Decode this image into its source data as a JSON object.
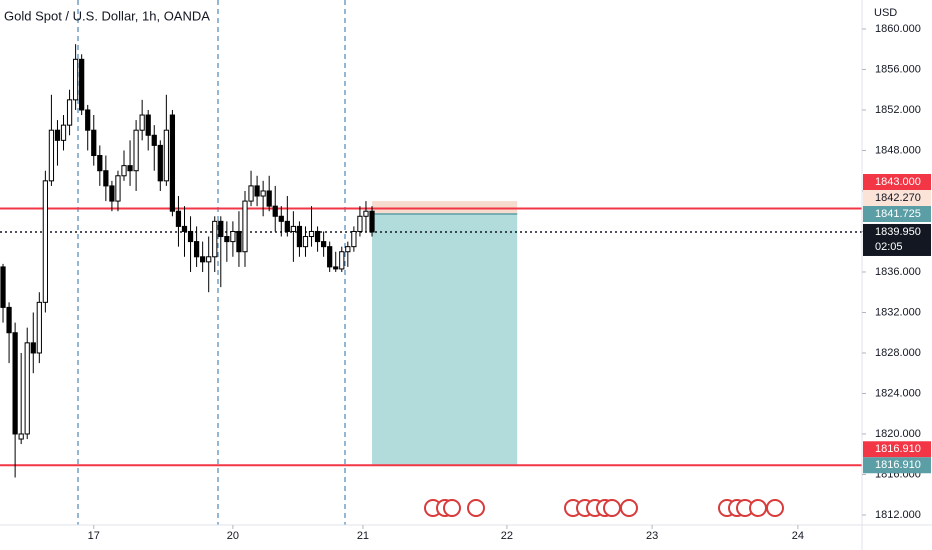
{
  "chart_data": {
    "type": "candlestick",
    "title": "Gold Spot / U.S. Dollar, 1h, OANDA",
    "currency": "USD",
    "up_color": "#ffffff",
    "down_color": "#000000",
    "open": [
      1836.5,
      1832.5,
      1830,
      1819.5,
      1820,
      1829,
      1828,
      1833,
      1845,
      1850,
      1849,
      1850.5,
      1853,
      1857,
      1852,
      1850,
      1847.5,
      1846,
      1844.5,
      1843,
      1845.5,
      1846.5,
      1846,
      1850,
      1851.5,
      1849.5,
      1848.5,
      1845,
      1851.5,
      1842,
      1840.5,
      1840,
      1839,
      1837.5,
      1837,
      1837.5,
      1841,
      1839.5,
      1839,
      1840,
      1838,
      1843,
      1844.5,
      1843.5,
      1844,
      1842.5,
      1841.5,
      1841,
      1840,
      1840.5,
      1838.5,
      1839.5,
      1840,
      1839,
      1838.5,
      1836.5,
      1836.3,
      1838,
      1838.5,
      1840,
      1841.5,
      1842
    ],
    "high": [
      1836.8,
      1833,
      1831,
      1828,
      1830.5,
      1832,
      1834,
      1846,
      1853.5,
      1851,
      1851.5,
      1854,
      1858.5,
      1857.5,
      1852.5,
      1851.5,
      1848.5,
      1847.5,
      1845,
      1846,
      1848,
      1849,
      1851,
      1853,
      1852,
      1850.5,
      1849,
      1853.5,
      1852,
      1843.5,
      1842.5,
      1841.5,
      1840.5,
      1839,
      1839.5,
      1841.5,
      1841.5,
      1841,
      1841,
      1842,
      1844,
      1846,
      1845.5,
      1845,
      1845.5,
      1844.5,
      1842.5,
      1843.5,
      1842,
      1841,
      1840.5,
      1842.5,
      1840.5,
      1840,
      1839,
      1838,
      1838.5,
      1839,
      1840.5,
      1842.5,
      1843,
      1842.5
    ],
    "low": [
      1831,
      1827,
      1815.7,
      1819,
      1819.5,
      1826,
      1827,
      1832,
      1844.5,
      1846.5,
      1848,
      1849.5,
      1852,
      1851.5,
      1848,
      1846.5,
      1844.5,
      1843,
      1842,
      1842,
      1845,
      1844.5,
      1844,
      1849,
      1848,
      1846,
      1844,
      1844.5,
      1841.5,
      1838.5,
      1837.5,
      1836,
      1836.5,
      1836,
      1834,
      1836,
      1834.5,
      1837,
      1837.5,
      1836.5,
      1836.5,
      1842.5,
      1842.5,
      1841.5,
      1842,
      1840,
      1839.5,
      1839.5,
      1837,
      1837.5,
      1837.5,
      1838.5,
      1838,
      1837.5,
      1836,
      1836,
      1836,
      1836.5,
      1838,
      1839.5,
      1840,
      1839.5
    ],
    "close": [
      1832.5,
      1830,
      1820,
      1820,
      1829,
      1828,
      1833,
      1845,
      1850,
      1849,
      1850.5,
      1853,
      1857,
      1852,
      1850,
      1847.5,
      1846,
      1844.5,
      1843,
      1845.5,
      1846.5,
      1846,
      1850,
      1851.5,
      1849.5,
      1848.5,
      1845,
      1850,
      1842,
      1840.5,
      1840,
      1839,
      1837.5,
      1837,
      1837.5,
      1841,
      1839.5,
      1839,
      1840,
      1838,
      1843,
      1844.5,
      1843.5,
      1844,
      1842.5,
      1841.5,
      1841,
      1840,
      1840.5,
      1838.5,
      1839.5,
      1840,
      1839,
      1838.5,
      1836.5,
      1836.3,
      1838,
      1838.5,
      1840,
      1841.5,
      1842,
      1839.95
    ],
    "xlim": [
      -0.5,
      142
    ],
    "xticks": [
      {
        "value": 15,
        "label": "17"
      },
      {
        "value": 38,
        "label": "20"
      },
      {
        "value": 59.5,
        "label": "21"
      },
      {
        "value": 83.3,
        "label": "22"
      },
      {
        "value": 107.3,
        "label": "23"
      },
      {
        "value": 131.4,
        "label": "24"
      }
    ],
    "ylim": [
      1811.01,
      1862.86
    ],
    "yticks": [
      {
        "value": 1812,
        "label": "1812.000"
      },
      {
        "value": 1816,
        "label": "1816.000"
      },
      {
        "value": 1820,
        "label": "1820.000"
      },
      {
        "value": 1824,
        "label": "1824.000"
      },
      {
        "value": 1828,
        "label": "1828.000"
      },
      {
        "value": 1832,
        "label": "1832.000"
      },
      {
        "value": 1836,
        "label": "1836.000"
      },
      {
        "value": 1840,
        "label": "1840.000"
      },
      {
        "value": 1844,
        "label": "1844.000"
      },
      {
        "value": 1848,
        "label": "1848.000"
      },
      {
        "value": 1852,
        "label": "1852.000"
      },
      {
        "value": 1856,
        "label": "1856.000"
      },
      {
        "value": 1860,
        "label": "1860.000"
      }
    ],
    "price_lines": [
      {
        "value": 1842.27,
        "color": "#f23645"
      },
      {
        "value": 1816.91,
        "color": "#f23645"
      }
    ],
    "position": {
      "start": 61,
      "end": 85,
      "stop": 1843,
      "entry": 1841.725,
      "target": 1816.91
    },
    "last_price": 1839.95,
    "price_labels": [
      {
        "value": 1843,
        "label": "1843.000",
        "color": "#f23645",
        "text_color": "#ffffff"
      },
      {
        "value": 1842.27,
        "label": "1842.270",
        "color": "#fbe3d8",
        "text_color": "#131722"
      },
      {
        "value": 1841.725,
        "label": "1841.725",
        "color": "#5b9ea6",
        "text_color": "#ffffff"
      },
      {
        "value": 1839.95,
        "label": "1839.950",
        "countdown": "02:05",
        "color": "#131722",
        "text_color": "#ffffff"
      },
      {
        "value": 1816.91,
        "label": "1816.910",
        "color": "#f23645",
        "text_color": "#ffffff"
      },
      {
        "value": 1816.91,
        "label": "1816.910",
        "color": "#5b9ea6",
        "text_color": "#ffffff"
      }
    ]
  }
}
